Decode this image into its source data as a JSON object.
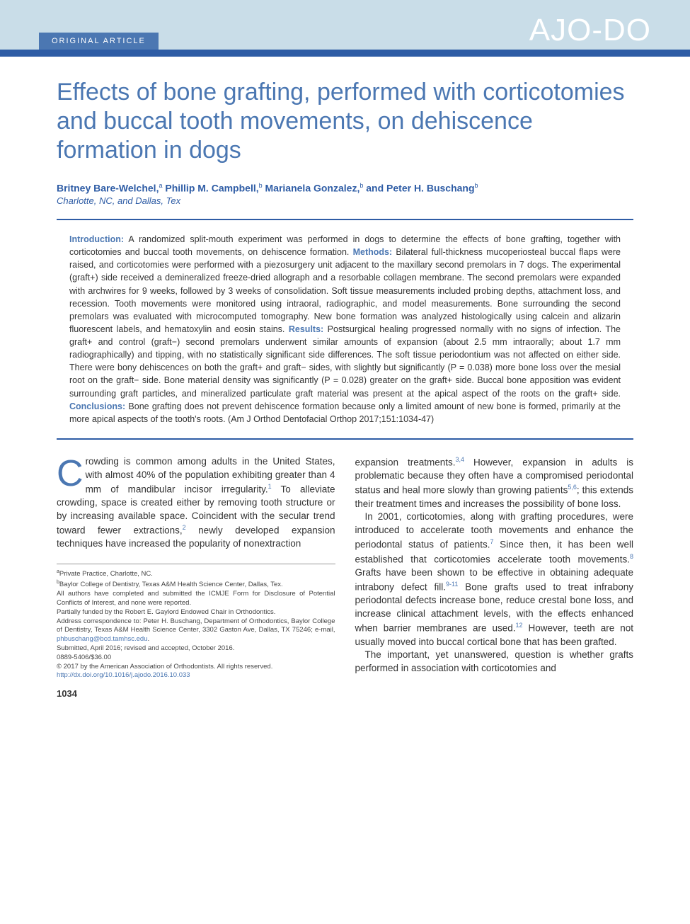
{
  "header": {
    "section_label": "ORIGINAL ARTICLE",
    "journal_logo": "AJO-DO"
  },
  "title": "Effects of bone grafting, performed with corticotomies and buccal tooth movements, on dehiscence formation in dogs",
  "authors_html": "Britney Bare-Welchel,<sup>a</sup> Phillip M. Campbell,<sup>b</sup> Marianela Gonzalez,<sup>b</sup> and Peter H. Buschang<sup>b</sup>",
  "affiliations": "Charlotte, NC, and Dallas, Tex",
  "abstract": {
    "intro_label": "Introduction:",
    "intro": "A randomized split-mouth experiment was performed in dogs to determine the effects of bone grafting, together with corticotomies and buccal tooth movements, on dehiscence formation.",
    "methods_label": "Methods:",
    "methods": "Bilateral full-thickness mucoperiosteal buccal flaps were raised, and corticotomies were performed with a piezosurgery unit adjacent to the maxillary second premolars in 7 dogs. The experimental (graft+) side received a demineralized freeze-dried allograph and a resorbable collagen membrane. The second premolars were expanded with archwires for 9 weeks, followed by 3 weeks of consolidation. Soft tissue measurements included probing depths, attachment loss, and recession. Tooth movements were monitored using intraoral, radiographic, and model measurements. Bone surrounding the second premolars was evaluated with microcomputed tomography. New bone formation was analyzed histologically using calcein and alizarin fluorescent labels, and hematoxylin and eosin stains.",
    "results_label": "Results:",
    "results": "Postsurgical healing progressed normally with no signs of infection. The graft+ and control (graft−) second premolars underwent similar amounts of expansion (about 2.5 mm intraorally; about 1.7 mm radiographically) and tipping, with no statistically significant side differences. The soft tissue periodontium was not affected on either side. There were bony dehiscences on both the graft+ and graft− sides, with slightly but significantly (P = 0.038) more bone loss over the mesial root on the graft− side. Bone material density was significantly (P = 0.028) greater on the graft+ side. Buccal bone apposition was evident surrounding graft particles, and mineralized particulate graft material was present at the apical aspect of the roots on the graft+ side.",
    "conclusions_label": "Conclusions:",
    "conclusions": "Bone grafting does not prevent dehiscence formation because only a limited amount of new bone is formed, primarily at the more apical aspects of the tooth's roots. (Am J Orthod Dentofacial Orthop 2017;151:1034-47)"
  },
  "body": {
    "col1": {
      "dropcap": "C",
      "p1_rest": "rowding is common among adults in the United States, with almost 40% of the population exhibiting greater than 4 mm of mandibular incisor irregularity.",
      "ref1": "1",
      "p1_cont": " To alleviate crowding, space is created either by removing tooth structure or by increasing available space. Coincident with the secular trend toward fewer extractions,",
      "ref2": "2",
      "p1_end": " newly developed expansion techniques have increased the popularity of nonextraction"
    },
    "col2": {
      "p1a": "expansion treatments.",
      "ref34": "3,4",
      "p1b": " However, expansion in adults is problematic because they often have a compromised periodontal status and heal more slowly than growing patients",
      "ref56": "5,6",
      "p1c": "; this extends their treatment times and increases the possibility of bone loss.",
      "p2a": "In 2001, corticotomies, along with grafting procedures, were introduced to accelerate tooth movements and enhance the periodontal status of patients.",
      "ref7": "7",
      "p2b": " Since then, it has been well established that corticotomies accelerate tooth movements.",
      "ref8": "8",
      "p2c": " Grafts have been shown to be effective in obtaining adequate intrabony defect fill.",
      "ref911": "9-11",
      "p2d": " Bone grafts used to treat infrabony periodontal defects increase bone, reduce crestal bone loss, and increase clinical attachment levels, with the effects enhanced when barrier membranes are used.",
      "ref12": "12",
      "p2e": " However, teeth are not usually moved into buccal cortical bone that has been grafted.",
      "p3": "The important, yet unanswered, question is whether grafts performed in association with corticotomies and"
    }
  },
  "footnotes": {
    "a": "Private Practice, Charlotte, NC.",
    "b": "Baylor College of Dentistry, Texas A&M Health Science Center, Dallas, Tex.",
    "icmje": "All authors have completed and submitted the ICMJE Form for Disclosure of Potential Conflicts of Interest, and none were reported.",
    "funding": "Partially funded by the Robert E. Gaylord Endowed Chair in Orthodontics.",
    "corr": "Address correspondence to: Peter H. Buschang, Department of Orthodontics, Baylor College of Dentistry, Texas A&M Health Science Center, 3302 Gaston Ave, Dallas, TX 75246; e-mail, ",
    "email": "phbuschang@bcd.tamhsc.edu",
    "submitted": "Submitted, April 2016; revised and accepted, October 2016.",
    "issn": "0889-5406/$36.00",
    "copyright": "© 2017 by the American Association of Orthodontists. All rights reserved.",
    "doi": "http://dx.doi.org/10.1016/j.ajodo.2016.10.033"
  },
  "page_number": "1034",
  "colors": {
    "header_band": "#c9dde8",
    "brand_blue": "#4b77b2",
    "bar_blue": "#2e5ca5",
    "text": "#333333"
  }
}
